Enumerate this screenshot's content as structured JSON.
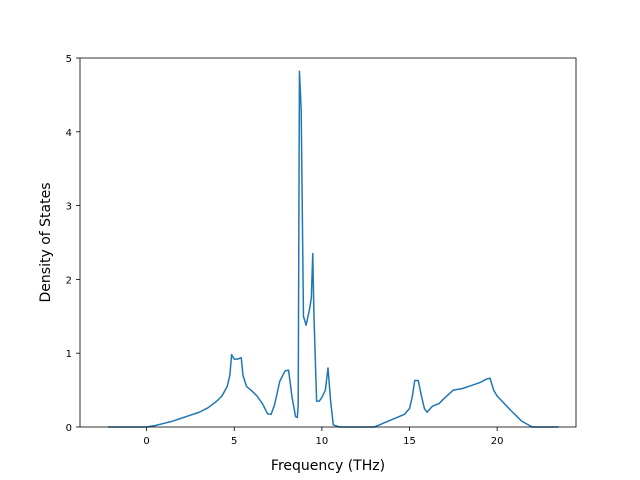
{
  "chart_data": {
    "type": "line",
    "title": "",
    "xlabel": "Frequency (THz)",
    "ylabel": "Density of States",
    "xlim": [
      -3.8,
      24.5
    ],
    "ylim": [
      0,
      5.0
    ],
    "grid": false,
    "legend": "none",
    "x_ticks": [
      0,
      5,
      10,
      15,
      20
    ],
    "x_tick_labels": [
      "0",
      "5",
      "10",
      "15",
      "20"
    ],
    "y_ticks": [
      0,
      1,
      2,
      3,
      4,
      5
    ],
    "y_tick_labels": [
      "0",
      "1",
      "2",
      "3",
      "4",
      "5"
    ],
    "series": [
      {
        "color": "#1f77b4",
        "x": [
          -2.2,
          -1.0,
          0.0,
          0.5,
          1.0,
          1.5,
          2.0,
          2.5,
          3.0,
          3.5,
          4.0,
          4.3,
          4.6,
          4.75,
          4.85,
          5.0,
          5.2,
          5.4,
          5.5,
          5.7,
          6.0,
          6.3,
          6.6,
          6.9,
          7.1,
          7.3,
          7.6,
          7.9,
          8.1,
          8.3,
          8.5,
          8.6,
          8.65,
          8.72,
          8.82,
          8.95,
          9.1,
          9.3,
          9.4,
          9.48,
          9.55,
          9.7,
          9.85,
          10.0,
          10.2,
          10.35,
          10.5,
          10.65,
          11.0,
          12.0,
          13.0,
          14.0,
          14.7,
          15.0,
          15.15,
          15.3,
          15.5,
          15.7,
          15.85,
          16.0,
          16.3,
          16.7,
          16.9,
          17.5,
          18.0,
          18.5,
          19.0,
          19.4,
          19.6,
          19.8,
          20.0,
          20.4,
          20.8,
          21.1,
          21.4,
          22.0,
          23.5
        ],
        "y": [
          0.0,
          0.0,
          0.0,
          0.02,
          0.05,
          0.08,
          0.12,
          0.16,
          0.2,
          0.26,
          0.35,
          0.42,
          0.55,
          0.7,
          0.98,
          0.92,
          0.92,
          0.94,
          0.7,
          0.55,
          0.49,
          0.42,
          0.32,
          0.18,
          0.17,
          0.3,
          0.62,
          0.76,
          0.77,
          0.4,
          0.14,
          0.13,
          0.3,
          4.82,
          4.3,
          1.5,
          1.38,
          1.6,
          1.75,
          2.35,
          1.5,
          0.35,
          0.35,
          0.4,
          0.5,
          0.8,
          0.35,
          0.03,
          0.0,
          0.0,
          0.0,
          0.1,
          0.17,
          0.25,
          0.4,
          0.63,
          0.63,
          0.4,
          0.25,
          0.2,
          0.28,
          0.32,
          0.37,
          0.5,
          0.52,
          0.56,
          0.6,
          0.65,
          0.66,
          0.5,
          0.42,
          0.32,
          0.22,
          0.15,
          0.08,
          0.0,
          0.0
        ]
      }
    ]
  }
}
